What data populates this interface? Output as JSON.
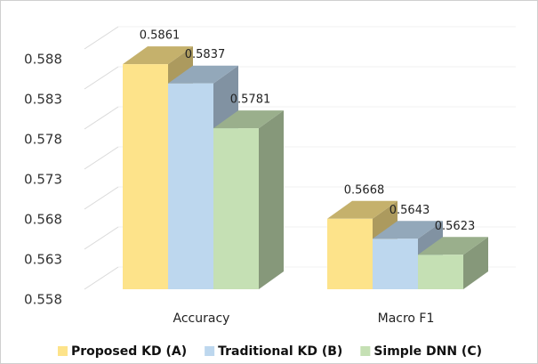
{
  "chart_data": {
    "type": "bar3d",
    "categories": [
      "Accuracy",
      "Macro F1"
    ],
    "series": [
      {
        "name": "Proposed KD (A)",
        "color": "#fde38a",
        "values": [
          0.5861,
          0.5668
        ]
      },
      {
        "name": "Traditional KD (B)",
        "color": "#bdd7ee",
        "values": [
          0.5837,
          0.5643
        ]
      },
      {
        "name": "Simple DNN (C)",
        "color": "#c5e0b4",
        "values": [
          0.5781,
          0.5623
        ]
      }
    ],
    "ylim": [
      0.558,
      0.588
    ],
    "yticks": [
      0.558,
      0.563,
      0.568,
      0.573,
      0.578,
      0.583,
      0.588
    ],
    "grid": true,
    "legend": "bottom"
  }
}
